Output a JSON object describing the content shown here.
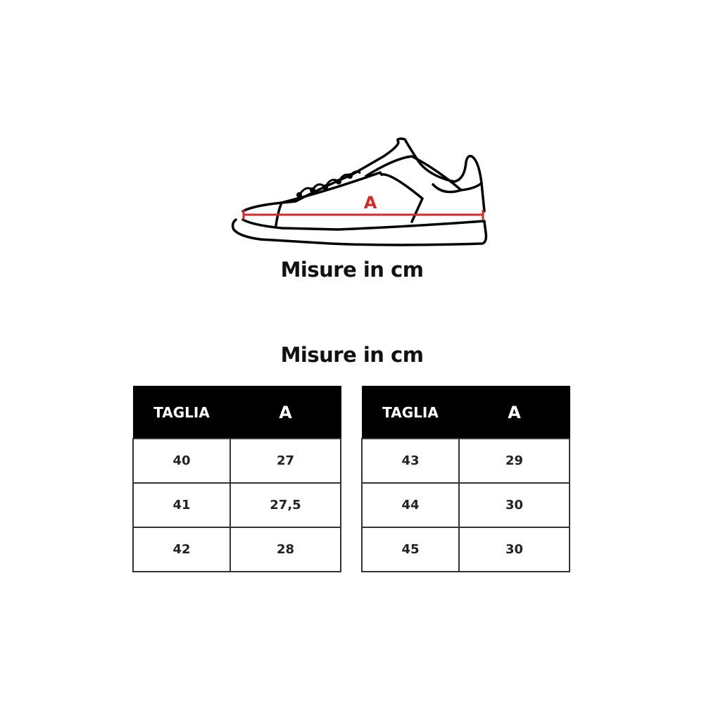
{
  "diagram": {
    "measure_label": "A",
    "accent_color": "#d42a2a",
    "caption": "Misure in cm"
  },
  "table_title": "Misure in cm",
  "tables": [
    {
      "headers": [
        "TAGLIA",
        "A"
      ],
      "rows": [
        [
          "40",
          "27"
        ],
        [
          "41",
          "27,5"
        ],
        [
          "42",
          "28"
        ]
      ]
    },
    {
      "headers": [
        "TAGLIA",
        "A"
      ],
      "rows": [
        [
          "43",
          "29"
        ],
        [
          "44",
          "30"
        ],
        [
          "45",
          "30"
        ]
      ]
    }
  ]
}
